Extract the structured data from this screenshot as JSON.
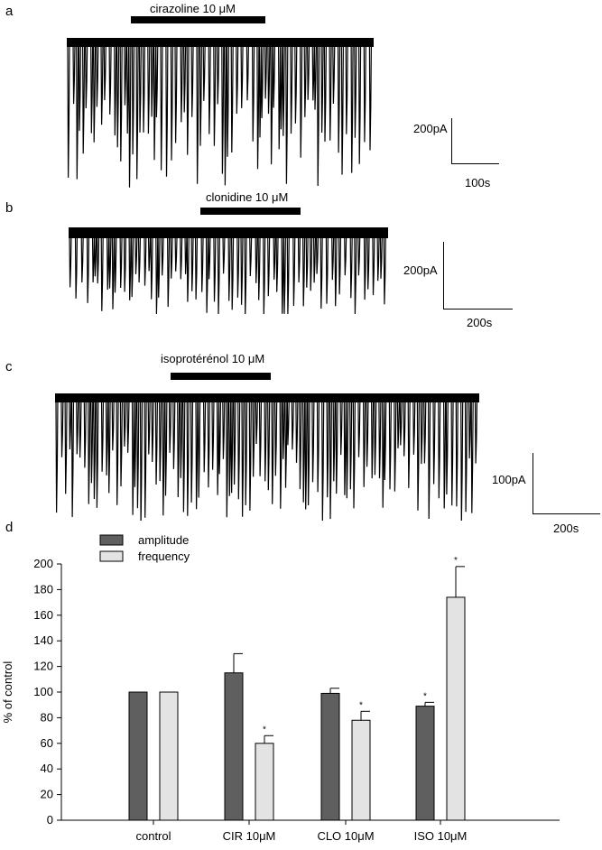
{
  "panels": {
    "a": {
      "letter": "a",
      "drug_label": "cirazoline 10 μM",
      "scale_current": "200pA",
      "scale_time": "100s"
    },
    "b": {
      "letter": "b",
      "drug_label": "clonidine 10 μM",
      "scale_current": "200pA",
      "scale_time": "200s"
    },
    "c": {
      "letter": "c",
      "drug_label": "isoprotérénol 10 μM",
      "scale_current": "100pA",
      "scale_time": "200s"
    },
    "d": {
      "letter": "d"
    }
  },
  "chart_data": {
    "type": "bar",
    "categories": [
      "control",
      "CIR 10μM",
      "CLO 10μM",
      "ISO 10μM"
    ],
    "series": [
      {
        "name": "amplitude",
        "color": "#5f5f5f",
        "values": [
          100,
          115,
          99,
          89
        ],
        "errors": [
          0,
          15,
          4,
          3
        ],
        "significant": [
          false,
          false,
          false,
          true
        ]
      },
      {
        "name": "frequency",
        "color": "#e3e3e3",
        "values": [
          100,
          60,
          78,
          174
        ],
        "errors": [
          0,
          6,
          7,
          24
        ],
        "significant": [
          false,
          true,
          true,
          true
        ]
      }
    ],
    "significance_marker": "*",
    "ylabel": "% of control",
    "ylim": [
      0,
      200
    ],
    "yticks": [
      0,
      20,
      40,
      60,
      80,
      100,
      120,
      140,
      160,
      180,
      200
    ],
    "grid": false,
    "legend": "top-left"
  }
}
